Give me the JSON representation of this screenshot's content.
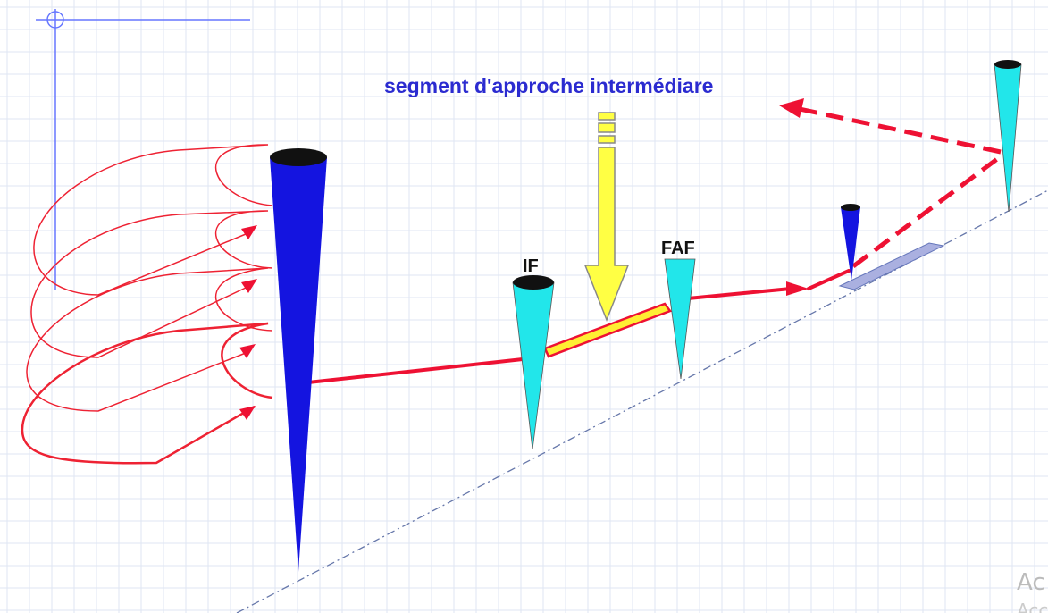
{
  "diagram": {
    "title": "segment d'approche intermédiare",
    "fix_labels": {
      "if": "IF",
      "faf": "FAF"
    },
    "watermark": {
      "line1": "Ac",
      "line2": "Acc"
    },
    "colors": {
      "background": "#ffffff",
      "grid": "#dfe5f3",
      "title": "#2b2bd0",
      "holding_pattern": "#ee2233",
      "track": "#ee1133",
      "missed_approach": "#ee1133",
      "beacon_blue": "#1414e0",
      "beacon_cyan": "#22e6ea",
      "beacon_cap": "#111111",
      "intermediate_segment_fill": "#ffee33",
      "intermediate_segment_border": "#ee1133",
      "pointer_arrow_fill": "#ffff44",
      "pointer_arrow_stroke": "#888888",
      "ground_line": "#6677aa",
      "runway": "#aab0e0",
      "crosshair": "#6677ff"
    },
    "icons": {
      "pointer": "down-arrow-icon",
      "crosshair": "crosshair-icon"
    }
  }
}
